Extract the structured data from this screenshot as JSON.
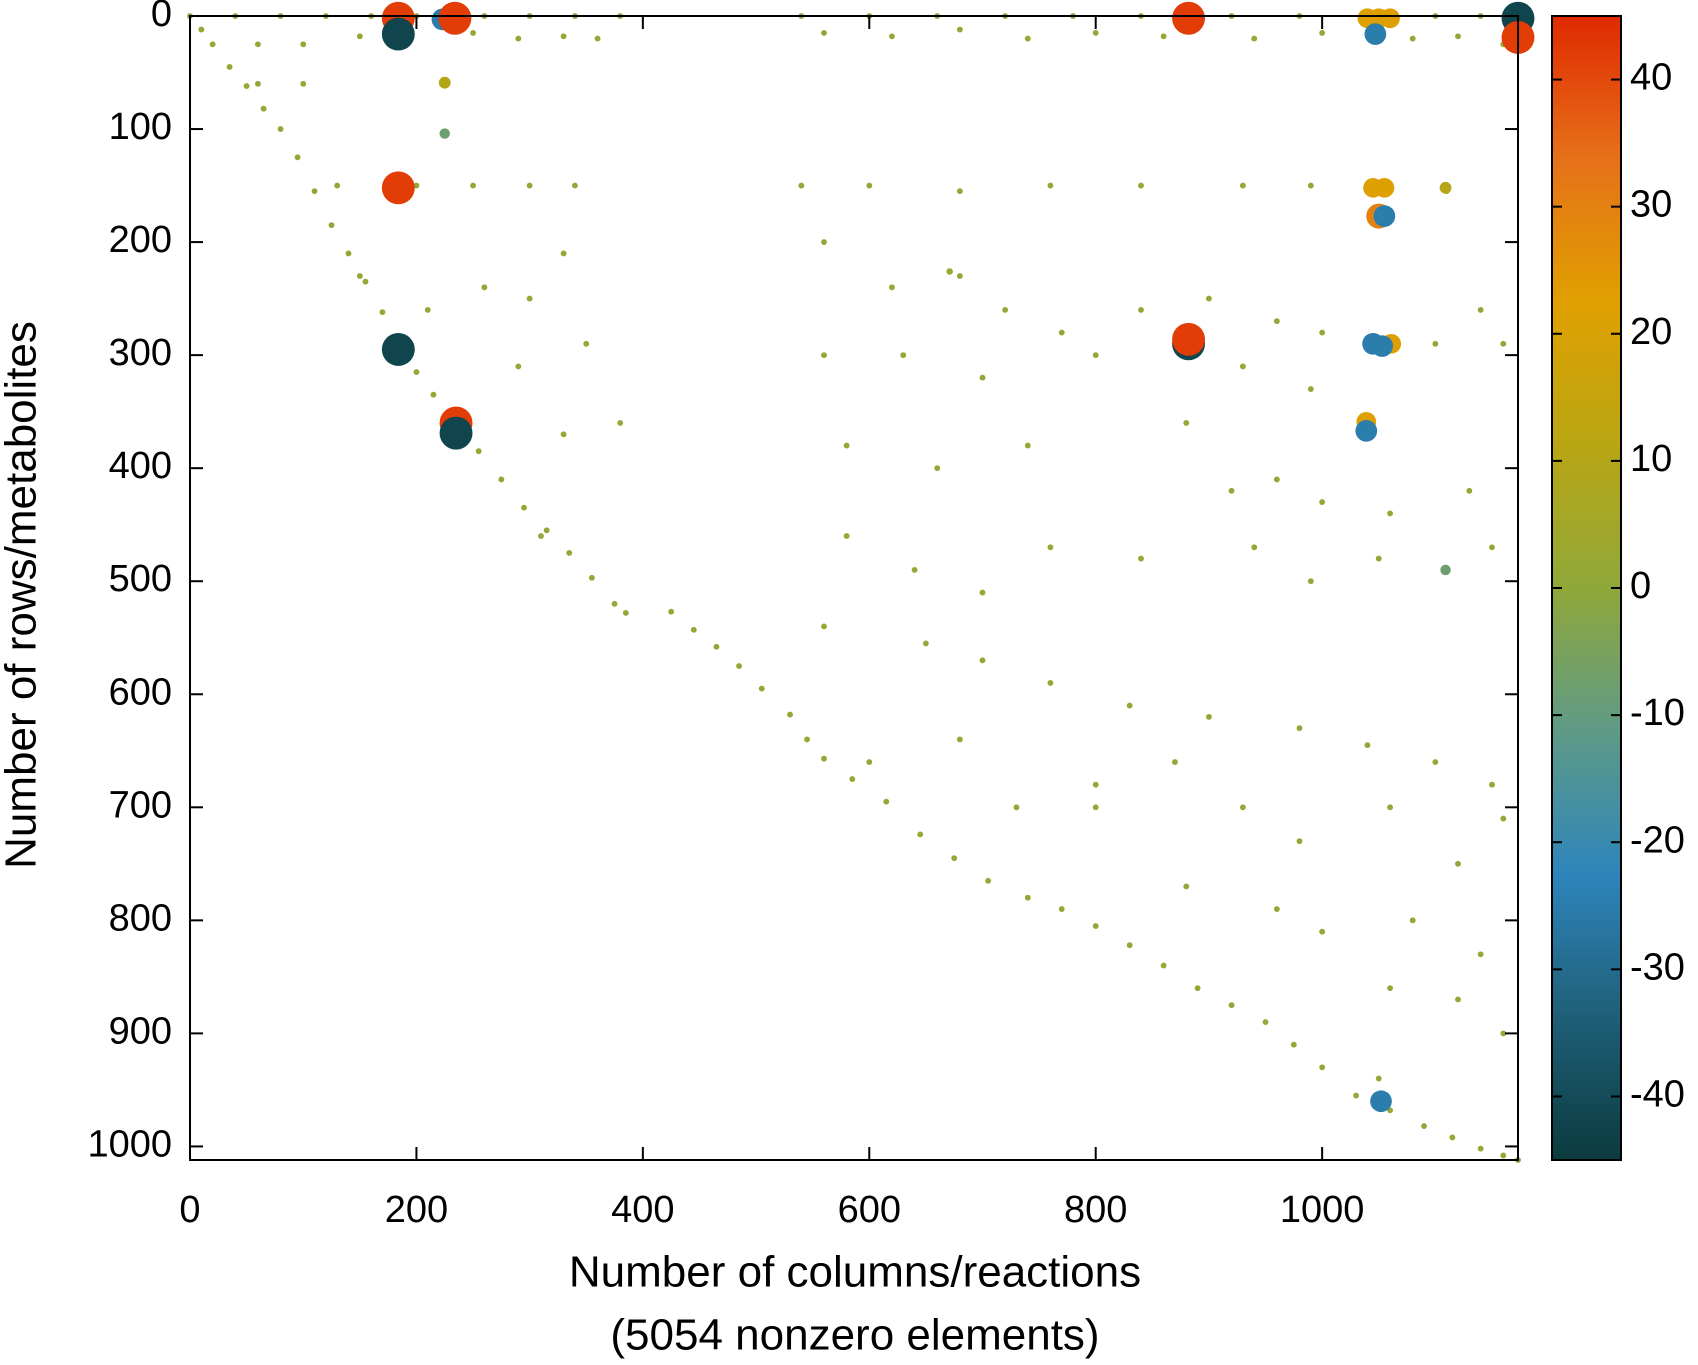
{
  "chart_data": {
    "type": "scatter",
    "xlabel": [
      "Number of columns/reactions",
      "(5054 nonzero elements)"
    ],
    "ylabel": "Number of rows/metabolites",
    "xlim": [
      0,
      1173
    ],
    "ylim": [
      0,
      1012
    ],
    "y_inverted": true,
    "xticks": [
      0,
      200,
      400,
      600,
      800,
      1000
    ],
    "yticks": [
      0,
      100,
      200,
      300,
      400,
      500,
      600,
      700,
      800,
      900,
      1000
    ],
    "zlim": [
      -45,
      45
    ],
    "zticks": [
      -40,
      -30,
      -20,
      -10,
      0,
      10,
      20,
      30,
      40
    ],
    "colormap": [
      "#0b3b3e",
      "#1f5f78",
      "#2e85bb",
      "#5e9a86",
      "#90a83a",
      "#b9a614",
      "#e0a000",
      "#e6711a",
      "#e02a00"
    ],
    "x": [
      0,
      10,
      20,
      35,
      50,
      65,
      80,
      95,
      110,
      125,
      140,
      155,
      170,
      185,
      200,
      215,
      235,
      255,
      275,
      295,
      315,
      335,
      355,
      375,
      385,
      425,
      445,
      465,
      485,
      505,
      530,
      545,
      560,
      585,
      615,
      645,
      675,
      705,
      740,
      770,
      800,
      830,
      860,
      890,
      920,
      950,
      975,
      1000,
      1030,
      1060,
      1090,
      1115,
      1140,
      1160,
      1173,
      40,
      80,
      120,
      160,
      200,
      260,
      300,
      340,
      380,
      540,
      600,
      660,
      720,
      780,
      840,
      920,
      980,
      1100,
      1140,
      60,
      100,
      150,
      250,
      290,
      330,
      360,
      560,
      620,
      680,
      740,
      800,
      860,
      940,
      1000,
      1080,
      1120,
      1160,
      60,
      100,
      130,
      200,
      250,
      300,
      340,
      540,
      600,
      680,
      760,
      840,
      930,
      990,
      1110,
      150,
      210,
      260,
      300,
      330,
      350,
      290,
      560,
      620,
      680,
      720,
      770,
      840,
      900,
      960,
      1000,
      1140,
      560,
      630,
      700,
      800,
      930,
      990,
      1100,
      1160,
      330,
      380,
      580,
      660,
      740,
      880,
      920,
      960,
      1000,
      1060,
      1130,
      310,
      580,
      640,
      700,
      760,
      840,
      940,
      990,
      1050,
      1150,
      560,
      650,
      700,
      760,
      830,
      900,
      980,
      1040,
      1100,
      1150,
      600,
      680,
      730,
      800,
      870,
      930,
      980,
      1060,
      1120,
      1160,
      880,
      960,
      1000,
      1080,
      1140,
      1060,
      1120,
      1160,
      1050,
      800,
      225,
      225,
      1109,
      1109,
      671,
      223,
      184,
      184,
      234,
      184,
      184,
      235,
      235,
      882,
      882,
      882,
      1040,
      1050,
      1060,
      1047,
      1173,
      1173,
      1045,
      1055,
      1050,
      1055,
      1045,
      1061,
      1053,
      1039,
      1039,
      1052
    ],
    "y": [
      0,
      12,
      25,
      45,
      62,
      82,
      100,
      125,
      155,
      185,
      210,
      235,
      262,
      290,
      315,
      335,
      362,
      385,
      410,
      435,
      455,
      475,
      497,
      520,
      528,
      527,
      543,
      558,
      575,
      595,
      618,
      640,
      657,
      675,
      695,
      724,
      745,
      765,
      780,
      790,
      805,
      822,
      840,
      860,
      875,
      890,
      910,
      930,
      955,
      968,
      982,
      992,
      1002,
      1008,
      1012,
      0,
      0,
      0,
      0,
      0,
      0,
      0,
      0,
      0,
      0,
      0,
      0,
      0,
      0,
      0,
      0,
      0,
      0,
      0,
      25,
      25,
      18,
      15,
      20,
      18,
      20,
      15,
      18,
      12,
      20,
      15,
      18,
      20,
      15,
      20,
      18,
      25,
      60,
      60,
      150,
      150,
      150,
      150,
      150,
      150,
      150,
      155,
      150,
      150,
      150,
      150,
      155,
      230,
      260,
      240,
      250,
      210,
      290,
      310,
      200,
      240,
      230,
      260,
      280,
      260,
      250,
      270,
      280,
      260,
      300,
      300,
      320,
      300,
      310,
      330,
      290,
      290,
      370,
      360,
      380,
      400,
      380,
      360,
      420,
      410,
      430,
      440,
      420,
      460,
      460,
      490,
      510,
      470,
      480,
      470,
      500,
      480,
      470,
      540,
      555,
      570,
      590,
      610,
      620,
      630,
      645,
      660,
      680,
      660,
      640,
      700,
      680,
      660,
      700,
      730,
      700,
      750,
      710,
      770,
      790,
      810,
      800,
      830,
      860,
      870,
      900,
      940,
      700,
      59,
      104,
      490,
      152,
      226,
      3,
      2,
      16,
      2,
      152,
      295,
      360,
      369,
      2,
      290,
      286,
      2,
      2,
      2,
      16,
      2,
      19,
      152,
      152,
      177,
      177,
      290,
      290,
      292,
      359,
      367,
      960
    ],
    "values": [
      1,
      1,
      1,
      1,
      1,
      1,
      1,
      1,
      1,
      1,
      1,
      1,
      1,
      1,
      1,
      1,
      1,
      1,
      1,
      1,
      1,
      1,
      1,
      1,
      1,
      1,
      1,
      1,
      1,
      1,
      1,
      1,
      1,
      1,
      1,
      1,
      1,
      1,
      1,
      1,
      1,
      1,
      1,
      1,
      1,
      1,
      1,
      1,
      1,
      1,
      1,
      1,
      1,
      1,
      1,
      1,
      1,
      1,
      1,
      1,
      1,
      1,
      1,
      1,
      1,
      1,
      1,
      1,
      1,
      1,
      1,
      1,
      1,
      1,
      1,
      1,
      1,
      1,
      1,
      1,
      1,
      1,
      1,
      1,
      1,
      1,
      1,
      1,
      1,
      1,
      1,
      1,
      1,
      1,
      1,
      1,
      1,
      1,
      1,
      1,
      1,
      1,
      1,
      1,
      1,
      1,
      1,
      1,
      1,
      1,
      1,
      1,
      1,
      1,
      1,
      1,
      1,
      1,
      1,
      1,
      1,
      1,
      1,
      1,
      1,
      1,
      1,
      1,
      1,
      1,
      1,
      1,
      1,
      1,
      1,
      1,
      1,
      1,
      1,
      1,
      1,
      1,
      1,
      1,
      1,
      1,
      1,
      1,
      1,
      1,
      1,
      1,
      1,
      1,
      1,
      1,
      1,
      1,
      1,
      1,
      1,
      1,
      1,
      1,
      1,
      1,
      1,
      1,
      1,
      1,
      1,
      1,
      1,
      1,
      1,
      1,
      1,
      1,
      1,
      1,
      1,
      1,
      1,
      10,
      -8,
      -8,
      10,
      2,
      -25,
      42,
      -42,
      42,
      42,
      -42,
      42,
      -42,
      42,
      -42,
      42,
      22,
      22,
      22,
      -25,
      -42,
      42,
      22,
      22,
      30,
      -25,
      -25,
      22,
      -25,
      22,
      -25,
      -25
    ]
  }
}
